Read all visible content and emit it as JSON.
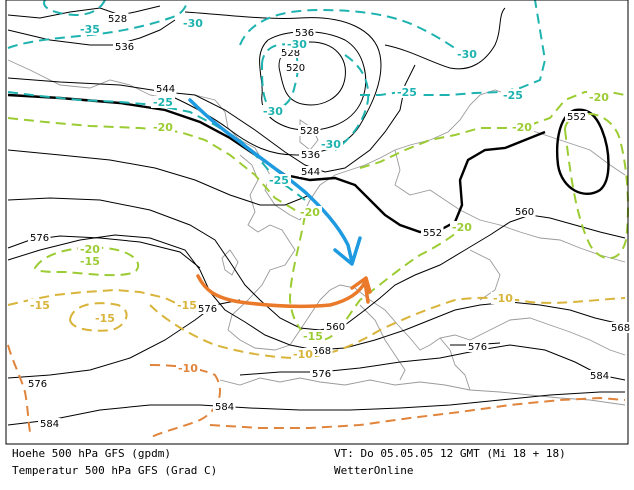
{
  "map": {
    "geopotential_labels": [
      "528",
      "536",
      "536",
      "528",
      "520",
      "528",
      "536",
      "544",
      "544",
      "552",
      "552",
      "560",
      "560",
      "568",
      "568",
      "576",
      "576",
      "576",
      "576",
      "576",
      "584",
      "584",
      "584"
    ],
    "temperature_labels": [
      "-35",
      "-30",
      "-30",
      "-30",
      "-30",
      "-30",
      "-25",
      "-25",
      "-25",
      "-25",
      "-20",
      "-20",
      "-20",
      "-20",
      "-20",
      "-20",
      "-15",
      "-15",
      "-15",
      "-15",
      "-15",
      "-10",
      "-10",
      "-10"
    ],
    "colors": {
      "geopotential": "#000000",
      "temp_cyan": "#1fb3b0",
      "temp_green": "#9ccc33",
      "temp_yellow": "#d9b43a",
      "temp_orange": "#e0843c",
      "coastline": "#9a9a9a",
      "arrow_blue": "#1e9be0",
      "arrow_orange": "#ea7a2a"
    }
  },
  "legend": {
    "line1": "Hoehe 500 hPa GFS (gpdm)",
    "line2": "Temperatur 500 hPa GFS (Grad C)",
    "valid_time": "VT: Do 05.05.05 12 GMT (Mi 18 + 18)",
    "source": "WetterOnline"
  }
}
